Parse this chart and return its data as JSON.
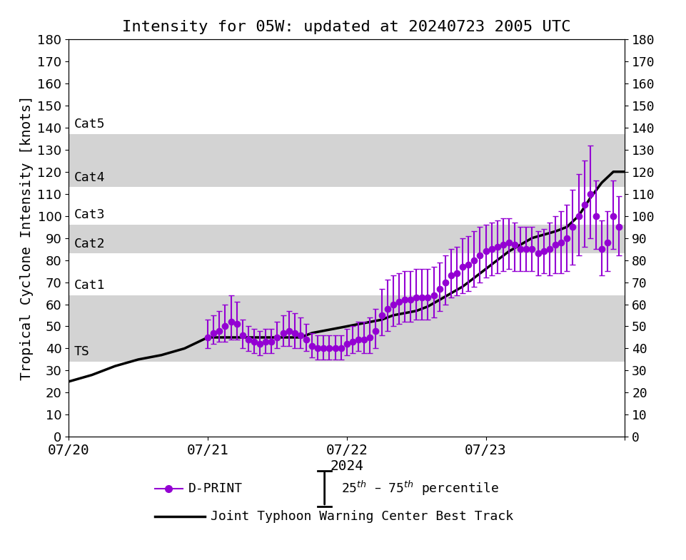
{
  "title": "Intensity for 05W: updated at 20240723 2005 UTC",
  "ylabel": "Tropical Cyclone Intensity [knots]",
  "xlabel": "2024",
  "xlim_days": [
    0.0,
    4.0
  ],
  "ylim": [
    0,
    180
  ],
  "yticks": [
    0,
    10,
    20,
    30,
    40,
    50,
    60,
    70,
    80,
    90,
    100,
    110,
    120,
    130,
    140,
    150,
    160,
    170,
    180
  ],
  "xtick_labels": [
    "07/20",
    "07/21",
    "07/22",
    "07/23",
    ""
  ],
  "xtick_positions": [
    0,
    1,
    2,
    3,
    4
  ],
  "category_bands": [
    {
      "label": "TS",
      "ymin": 34,
      "ymax": 64,
      "color": "#d3d3d3"
    },
    {
      "label": "Cat1",
      "ymin": 64,
      "ymax": 83,
      "color": "#ffffff"
    },
    {
      "label": "Cat2",
      "ymin": 83,
      "ymax": 96,
      "color": "#d3d3d3"
    },
    {
      "label": "Cat3",
      "ymin": 96,
      "ymax": 113,
      "color": "#ffffff"
    },
    {
      "label": "Cat4",
      "ymin": 113,
      "ymax": 137,
      "color": "#d3d3d3"
    },
    {
      "label": "Cat5",
      "ymin": 137,
      "ymax": 180,
      "color": "#ffffff"
    }
  ],
  "best_track_x": [
    0.0,
    0.167,
    0.333,
    0.5,
    0.667,
    0.833,
    1.0,
    1.083,
    1.167,
    1.25,
    1.333,
    1.5,
    1.583,
    1.667,
    1.75,
    1.833,
    1.917,
    2.0,
    2.083,
    2.167,
    2.25,
    2.333,
    2.5,
    2.583,
    2.667,
    2.75,
    2.833,
    2.917,
    3.0,
    3.083,
    3.167,
    3.25,
    3.333,
    3.5,
    3.583,
    3.667,
    3.75,
    3.833,
    3.917,
    4.0
  ],
  "best_track_y": [
    25,
    28,
    32,
    35,
    37,
    40,
    45,
    45,
    45,
    45,
    45,
    45,
    45,
    45,
    47,
    48,
    49,
    50,
    51,
    52,
    53,
    55,
    57,
    59,
    62,
    65,
    68,
    72,
    76,
    80,
    84,
    87,
    90,
    93,
    95,
    100,
    108,
    115,
    120,
    120
  ],
  "dprint_x": [
    1.0,
    1.042,
    1.083,
    1.125,
    1.167,
    1.208,
    1.25,
    1.292,
    1.333,
    1.375,
    1.417,
    1.458,
    1.5,
    1.542,
    1.583,
    1.625,
    1.667,
    1.708,
    1.75,
    1.792,
    1.833,
    1.875,
    1.917,
    1.958,
    2.0,
    2.042,
    2.083,
    2.125,
    2.167,
    2.208,
    2.25,
    2.292,
    2.333,
    2.375,
    2.417,
    2.458,
    2.5,
    2.542,
    2.583,
    2.625,
    2.667,
    2.708,
    2.75,
    2.792,
    2.833,
    2.875,
    2.917,
    2.958,
    3.0,
    3.042,
    3.083,
    3.125,
    3.167,
    3.208,
    3.25,
    3.292,
    3.333,
    3.375,
    3.417,
    3.458,
    3.5,
    3.542,
    3.583,
    3.625,
    3.667,
    3.708,
    3.75,
    3.792,
    3.833,
    3.875,
    3.917,
    3.958
  ],
  "dprint_y": [
    45,
    47,
    48,
    50,
    52,
    51,
    46,
    44,
    43,
    42,
    43,
    43,
    45,
    47,
    48,
    47,
    46,
    44,
    41,
    40,
    40,
    40,
    40,
    40,
    42,
    43,
    44,
    44,
    45,
    48,
    55,
    58,
    60,
    61,
    62,
    62,
    63,
    63,
    63,
    64,
    67,
    70,
    73,
    74,
    77,
    78,
    80,
    82,
    84,
    85,
    86,
    87,
    88,
    87,
    85,
    85,
    85,
    83,
    84,
    85,
    87,
    88,
    90,
    95,
    100,
    105,
    110,
    100,
    85,
    88,
    100,
    95
  ],
  "dprint_err_low": [
    5,
    5,
    5,
    7,
    8,
    7,
    6,
    5,
    5,
    5,
    5,
    5,
    5,
    6,
    7,
    7,
    6,
    5,
    5,
    5,
    5,
    5,
    5,
    5,
    5,
    5,
    5,
    6,
    7,
    8,
    9,
    10,
    10,
    10,
    10,
    10,
    10,
    10,
    10,
    10,
    10,
    10,
    10,
    10,
    12,
    12,
    12,
    12,
    12,
    12,
    12,
    12,
    12,
    12,
    10,
    10,
    10,
    10,
    10,
    12,
    13,
    14,
    15,
    17,
    18,
    19,
    20,
    15,
    12,
    13,
    15,
    13
  ],
  "dprint_err_high": [
    8,
    8,
    9,
    10,
    12,
    10,
    7,
    6,
    6,
    6,
    6,
    6,
    7,
    8,
    9,
    9,
    8,
    7,
    6,
    6,
    6,
    6,
    6,
    6,
    7,
    7,
    8,
    8,
    9,
    10,
    12,
    13,
    13,
    13,
    13,
    13,
    13,
    13,
    13,
    13,
    12,
    12,
    12,
    12,
    13,
    13,
    13,
    13,
    12,
    12,
    12,
    12,
    11,
    10,
    10,
    10,
    10,
    10,
    10,
    12,
    13,
    14,
    15,
    17,
    19,
    20,
    22,
    16,
    13,
    14,
    16,
    14
  ],
  "dprint_color": "#9400D3",
  "best_track_color": "#000000",
  "background_color": "#ffffff"
}
